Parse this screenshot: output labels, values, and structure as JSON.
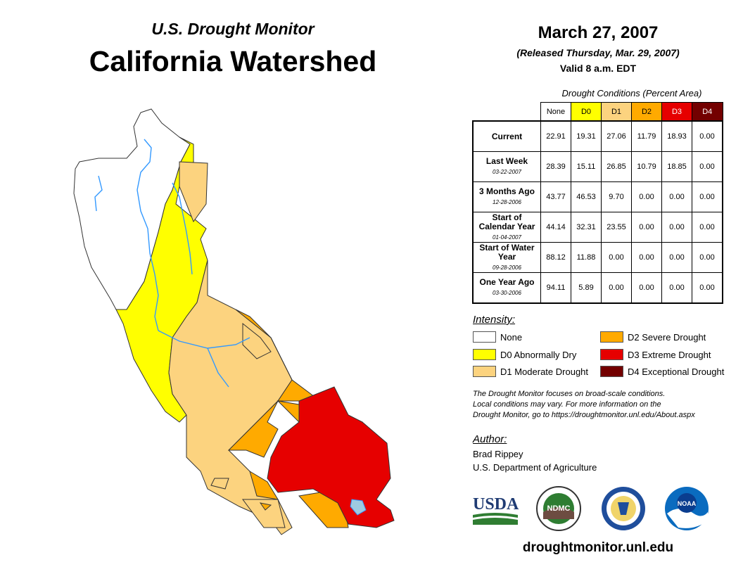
{
  "header": {
    "subtitle": "U.S. Drought Monitor",
    "title": "California Watershed"
  },
  "report": {
    "date": "March 27, 2007",
    "released": "(Released Thursday, Mar. 29, 2007)",
    "valid": "Valid 8 a.m. EDT"
  },
  "table": {
    "caption": "Drought Conditions (Percent Area)",
    "columns": [
      "None",
      "D0",
      "D1",
      "D2",
      "D3",
      "D4"
    ],
    "rows": [
      {
        "label": "Current",
        "date": "",
        "values": [
          "22.91",
          "19.31",
          "27.06",
          "11.79",
          "18.93",
          "0.00"
        ]
      },
      {
        "label": "Last Week",
        "date": "03-22-2007",
        "values": [
          "28.39",
          "15.11",
          "26.85",
          "10.79",
          "18.85",
          "0.00"
        ]
      },
      {
        "label": "3 Months Ago",
        "date": "12-28-2006",
        "values": [
          "43.77",
          "46.53",
          "9.70",
          "0.00",
          "0.00",
          "0.00"
        ]
      },
      {
        "label": "Start of Calendar Year",
        "date": "01-04-2007",
        "values": [
          "44.14",
          "32.31",
          "23.55",
          "0.00",
          "0.00",
          "0.00"
        ]
      },
      {
        "label": "Start of Water Year",
        "date": "09-28-2006",
        "values": [
          "88.12",
          "11.88",
          "0.00",
          "0.00",
          "0.00",
          "0.00"
        ]
      },
      {
        "label": "One Year Ago",
        "date": "03-30-2006",
        "values": [
          "94.11",
          "5.89",
          "0.00",
          "0.00",
          "0.00",
          "0.00"
        ]
      }
    ]
  },
  "legend": {
    "title": "Intensity:",
    "items": [
      {
        "label": "None",
        "color": "#ffffff"
      },
      {
        "label": "D0 Abnormally Dry",
        "color": "#ffff00"
      },
      {
        "label": "D1 Moderate Drought",
        "color": "#fcd37f"
      },
      {
        "label": "D2 Severe Drought",
        "color": "#ffaa00"
      },
      {
        "label": "D3 Extreme Drought",
        "color": "#e60000"
      },
      {
        "label": "D4 Exceptional Drought",
        "color": "#730000"
      }
    ]
  },
  "note": {
    "line1": "The Drought Monitor focuses on broad-scale conditions.",
    "line2": "Local conditions may vary. For more information on the",
    "line3": "Drought Monitor, go to https://droughtmonitor.unl.edu/About.aspx"
  },
  "author": {
    "title": "Author:",
    "name": "Brad Rippey",
    "org": "U.S. Department of Agriculture"
  },
  "logos": {
    "usda": "USDA",
    "ndmc": "NDMC",
    "noaa": "NOAA"
  },
  "footer": {
    "site": "droughtmonitor.unl.edu"
  },
  "colors": {
    "river": "#3399ff",
    "boundary": "#333333"
  }
}
